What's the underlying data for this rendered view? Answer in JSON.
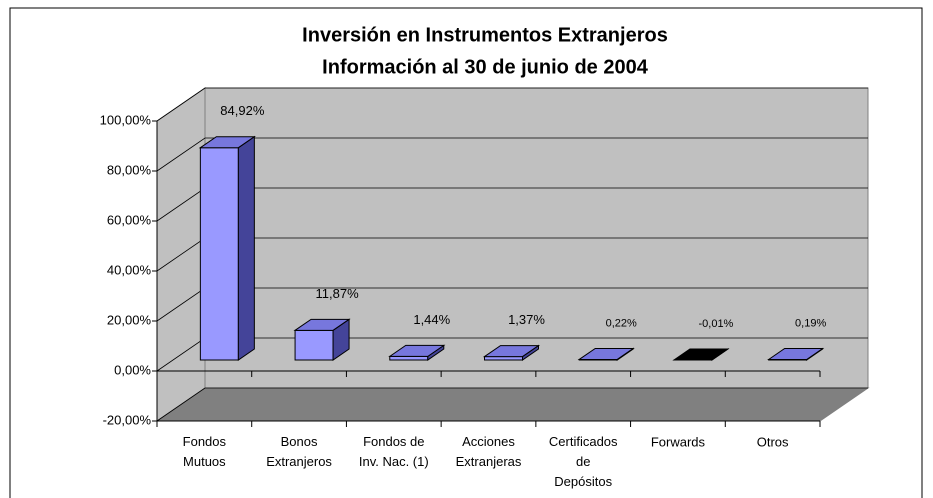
{
  "chart_data": {
    "type": "bar3d",
    "title": "Inversión en Instrumentos Extranjeros",
    "subtitle": "Información al 30 de junio de 2004",
    "categories": [
      "Fondos\nMutuos",
      "Bonos\nExtranjeros",
      "Fondos de\nInv. Nac. (1)",
      "Acciones\nExtranjeras",
      "Certificados\nde\nDepósitos",
      "Forwards",
      "Otros"
    ],
    "values": [
      84.92,
      11.87,
      1.44,
      1.37,
      0.22,
      -0.01,
      0.19
    ],
    "value_labels": [
      "84,92%",
      "11,87%",
      "1,44%",
      "1,37%",
      "0,22%",
      "-0,01%",
      "0,19%"
    ],
    "color": "#9999ff",
    "negative_color": "#000000",
    "ylim": [
      -20,
      100
    ],
    "yticks": [
      {
        "value": -20,
        "label": "-20,00%"
      },
      {
        "value": 0,
        "label": "0,00%"
      },
      {
        "value": 20,
        "label": "20,00%"
      },
      {
        "value": 40,
        "label": "40,00%"
      },
      {
        "value": 60,
        "label": "60,00%"
      },
      {
        "value": 80,
        "label": "80,00%"
      },
      {
        "value": 100,
        "label": "100,00%"
      }
    ],
    "grid": true
  }
}
